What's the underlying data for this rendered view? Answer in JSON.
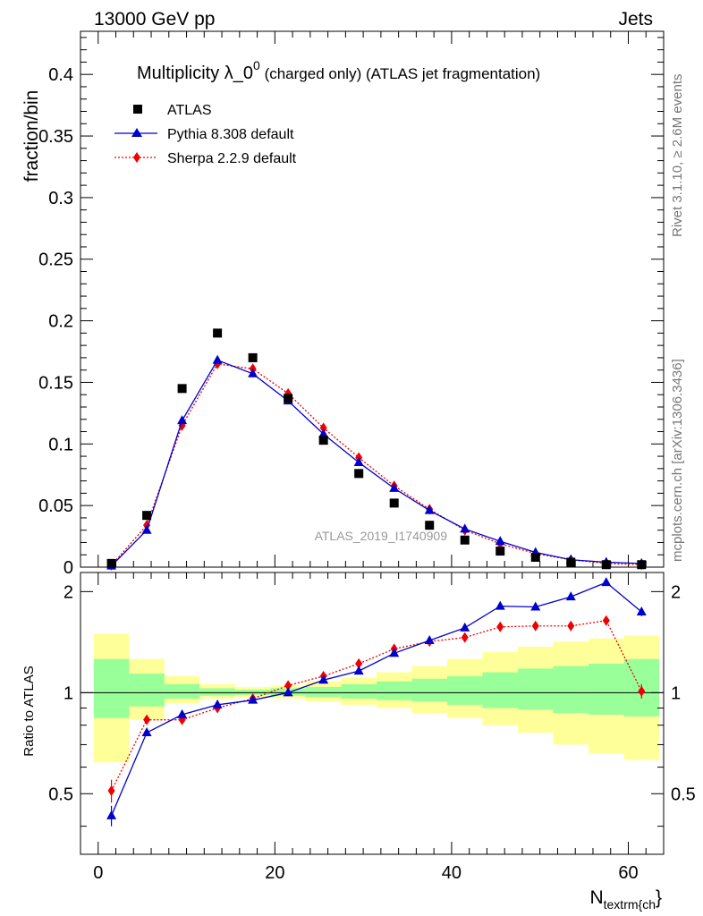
{
  "header": {
    "left": "13000 GeV pp",
    "right": "Jets"
  },
  "side_labels": {
    "rivet": "Rivet 3.1.10, ≥ 2.6M events",
    "mcplots": "mcplots.cern.ch [arXiv:1306.3436]"
  },
  "title": {
    "main": "Multiplicity λ_0",
    "sup": "0",
    "rest": " (charged only) (ATLAS jet fragmentation)"
  },
  "watermark": "ATLAS_2019_I1740909",
  "colors": {
    "atlas": "#000000",
    "pythia": "#0000cc",
    "sherpa": "#ee0000",
    "band_inner": "#99ff99",
    "band_outer": "#ffff99"
  },
  "chart_data": [
    {
      "type": "scatter",
      "panel": "main",
      "ylabel": "fraction/bin",
      "xlim": [
        -2,
        64
      ],
      "ylim": [
        0,
        0.435
      ],
      "yticks": [
        0,
        0.05,
        0.1,
        0.15,
        0.2,
        0.25,
        0.3,
        0.35,
        0.4
      ],
      "ytick_labels": [
        "0",
        "0.05",
        "0.1",
        "0.15",
        "0.2",
        "0.25",
        "0.3",
        "0.35",
        "0.4"
      ],
      "x": [
        1.5,
        5.5,
        9.5,
        13.5,
        17.5,
        21.5,
        25.5,
        29.5,
        33.5,
        37.5,
        41.5,
        45.5,
        49.5,
        53.5,
        57.5,
        61.5
      ],
      "legend_position": "top-left",
      "series": [
        {
          "name": "ATLAS",
          "marker": "square",
          "values": [
            0.003,
            0.042,
            0.145,
            0.19,
            0.17,
            0.137,
            0.103,
            0.076,
            0.052,
            0.034,
            0.022,
            0.013,
            0.008,
            0.004,
            0.002,
            0.002
          ]
        },
        {
          "name": "Pythia 8.308 default",
          "marker": "triangle",
          "values": [
            0.001,
            0.03,
            0.119,
            0.168,
            0.157,
            0.135,
            0.108,
            0.085,
            0.064,
            0.046,
            0.031,
            0.021,
            0.012,
            0.006,
            0.004,
            0.003
          ]
        },
        {
          "name": "Sherpa 2.2.9 default",
          "marker": "diamond",
          "values": [
            0.0015,
            0.034,
            0.115,
            0.165,
            0.161,
            0.141,
            0.113,
            0.089,
            0.066,
            0.047,
            0.03,
            0.019,
            0.011,
            0.006,
            0.003,
            0.002
          ]
        }
      ]
    },
    {
      "type": "scatter",
      "panel": "ratio",
      "xlabel": "N",
      "xlabel_sub": "textrm{ch",
      "xlabel_tail": "}",
      "ylabel": "Ratio to ATLAS",
      "xlim": [
        -2,
        64
      ],
      "ylim": [
        0.33,
        2.28
      ],
      "xticks": [
        0,
        20,
        40,
        60
      ],
      "xtick_labels": [
        "0",
        "20",
        "40",
        "60"
      ],
      "yticks": [
        0.5,
        1,
        2
      ],
      "ytick_labels": [
        "0.5",
        "1",
        "2"
      ],
      "bins": [
        [
          -0.5,
          3.5
        ],
        [
          3.5,
          7.5
        ],
        [
          7.5,
          11.5
        ],
        [
          11.5,
          15.5
        ],
        [
          15.5,
          19.5
        ],
        [
          19.5,
          23.5
        ],
        [
          23.5,
          27.5
        ],
        [
          27.5,
          31.5
        ],
        [
          31.5,
          35.5
        ],
        [
          35.5,
          39.5
        ],
        [
          39.5,
          43.5
        ],
        [
          43.5,
          47.5
        ],
        [
          47.5,
          51.5
        ],
        [
          51.5,
          55.5
        ],
        [
          55.5,
          59.5
        ],
        [
          59.5,
          63.5
        ]
      ],
      "band_outer": [
        [
          0.62,
          1.5
        ],
        [
          0.83,
          1.26
        ],
        [
          0.93,
          1.12
        ],
        [
          0.96,
          1.06
        ],
        [
          0.97,
          1.04
        ],
        [
          0.96,
          1.05
        ],
        [
          0.94,
          1.08
        ],
        [
          0.92,
          1.11
        ],
        [
          0.9,
          1.15
        ],
        [
          0.87,
          1.2
        ],
        [
          0.84,
          1.26
        ],
        [
          0.8,
          1.32
        ],
        [
          0.76,
          1.37
        ],
        [
          0.7,
          1.42
        ],
        [
          0.66,
          1.45
        ],
        [
          0.63,
          1.48
        ]
      ],
      "band_inner": [
        [
          0.84,
          1.26
        ],
        [
          0.91,
          1.14
        ],
        [
          0.96,
          1.06
        ],
        [
          0.98,
          1.03
        ],
        [
          0.985,
          1.02
        ],
        [
          0.98,
          1.03
        ],
        [
          0.97,
          1.04
        ],
        [
          0.96,
          1.06
        ],
        [
          0.95,
          1.08
        ],
        [
          0.94,
          1.1
        ],
        [
          0.92,
          1.12
        ],
        [
          0.9,
          1.15
        ],
        [
          0.89,
          1.18
        ],
        [
          0.87,
          1.2
        ],
        [
          0.86,
          1.22
        ],
        [
          0.85,
          1.26
        ]
      ],
      "x": [
        1.5,
        5.5,
        9.5,
        13.5,
        17.5,
        21.5,
        25.5,
        29.5,
        33.5,
        37.5,
        41.5,
        45.5,
        49.5,
        53.5,
        57.5,
        61.5
      ],
      "series": [
        {
          "name": "Pythia 8.308 default",
          "marker": "triangle",
          "values": [
            0.43,
            0.76,
            0.86,
            0.92,
            0.95,
            1.0,
            1.09,
            1.16,
            1.31,
            1.43,
            1.56,
            1.81,
            1.8,
            1.93,
            2.13,
            1.74
          ],
          "errors": [
            0.03,
            0.01,
            0.01,
            0.01,
            0.01,
            0.01,
            0.01,
            0.01,
            0.01,
            0.01,
            0.02,
            0.02,
            0.03,
            0.04,
            0.05,
            0.05
          ]
        },
        {
          "name": "Sherpa 2.2.9 default",
          "marker": "diamond",
          "values": [
            0.51,
            0.83,
            0.83,
            0.9,
            0.96,
            1.05,
            1.12,
            1.22,
            1.35,
            1.42,
            1.46,
            1.57,
            1.58,
            1.58,
            1.64,
            1.01
          ],
          "errors": [
            0.04,
            0.01,
            0.01,
            0.01,
            0.01,
            0.01,
            0.01,
            0.01,
            0.01,
            0.01,
            0.01,
            0.02,
            0.02,
            0.03,
            0.05,
            0.05
          ]
        }
      ]
    }
  ]
}
